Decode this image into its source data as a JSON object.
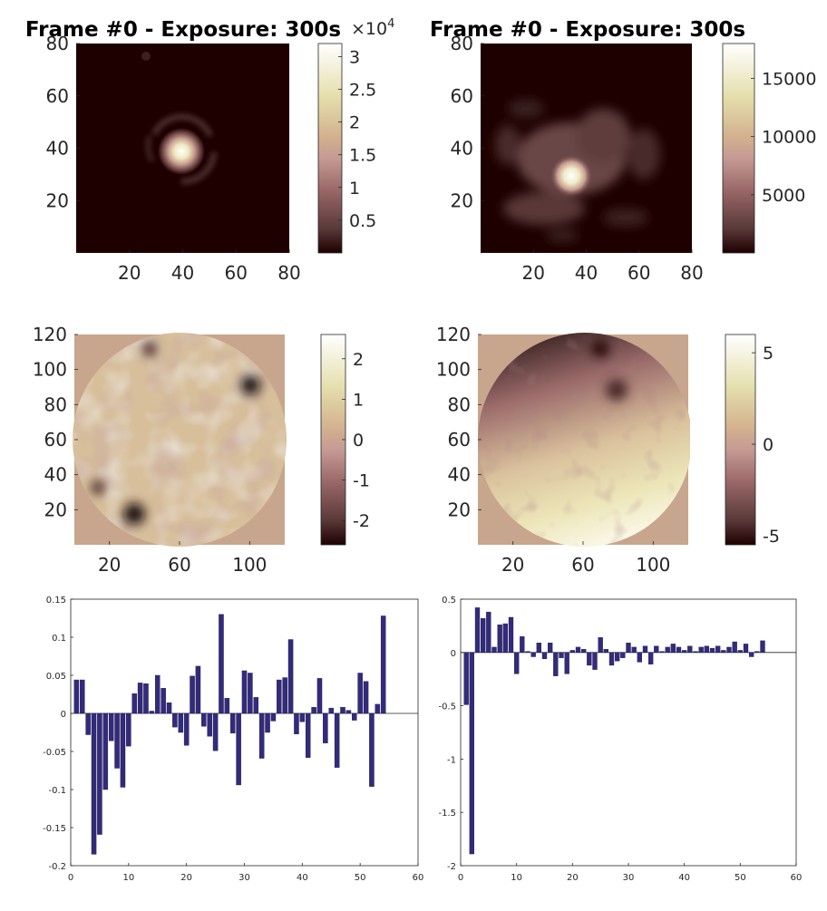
{
  "chart_data": [
    {
      "type": "heatmap",
      "title": "Frame #0 - Exposure: 300s",
      "xlim": [
        0,
        80
      ],
      "ylim": [
        0,
        80
      ],
      "xticks": [
        20,
        40,
        60,
        80
      ],
      "yticks": [
        20,
        40,
        60,
        80
      ],
      "colorbar": {
        "min": 0,
        "max": 32000,
        "ticks": [
          0.5,
          1,
          1.5,
          2,
          2.5,
          3
        ],
        "tick_labels": [
          "0.5",
          "1",
          "1.5",
          "2",
          "2.5",
          "3"
        ],
        "multiplier": "×10",
        "multiplier_exp": "4"
      },
      "features": [
        {
          "kind": "peak",
          "x": 40,
          "y": 39,
          "value": 32000
        }
      ]
    },
    {
      "type": "heatmap",
      "title": "Frame #0 - Exposure: 300s",
      "xlim": [
        0,
        80
      ],
      "ylim": [
        0,
        80
      ],
      "xticks": [
        20,
        40,
        60,
        80
      ],
      "yticks": [
        20,
        40,
        60,
        80
      ],
      "colorbar": {
        "min": 0,
        "max": 18000,
        "ticks": [
          5000,
          10000,
          15000
        ],
        "tick_labels": [
          "5000",
          "10000",
          "15000"
        ]
      },
      "features": [
        {
          "kind": "peak",
          "x": 35,
          "y": 29,
          "value": 18000
        }
      ]
    },
    {
      "type": "heatmap",
      "title": "",
      "xlim": [
        0,
        120
      ],
      "ylim": [
        0,
        120
      ],
      "xticks": [
        20,
        60,
        100
      ],
      "yticks": [
        20,
        40,
        60,
        80,
        100,
        120
      ],
      "colorbar": {
        "min": -2.6,
        "max": 2.6,
        "ticks": [
          -2,
          -1,
          0,
          1,
          2
        ],
        "tick_labels": [
          "-2",
          "-1",
          "0",
          "1",
          "2"
        ]
      }
    },
    {
      "type": "heatmap",
      "title": "",
      "xlim": [
        0,
        120
      ],
      "ylim": [
        0,
        120
      ],
      "xticks": [
        20,
        60,
        100
      ],
      "yticks": [
        20,
        40,
        60,
        80,
        100,
        120
      ],
      "colorbar": {
        "min": -5.5,
        "max": 6,
        "ticks": [
          -5,
          0,
          5
        ],
        "tick_labels": [
          "-5",
          "0",
          "5"
        ]
      }
    },
    {
      "type": "bar",
      "title": "",
      "xlim": [
        0,
        60
      ],
      "ylim": [
        -0.2,
        0.15
      ],
      "xticks": [
        0,
        10,
        20,
        30,
        40,
        50,
        60
      ],
      "yticks": [
        -0.2,
        -0.15,
        -0.1,
        -0.05,
        0,
        0.05,
        0.1,
        0.15
      ],
      "ytick_labels": [
        "-0.2",
        "-0.15",
        "-0.1",
        "-0.05",
        "0",
        "0.05",
        "0.1",
        "0.15"
      ],
      "x": [
        1,
        2,
        3,
        4,
        5,
        6,
        7,
        8,
        9,
        10,
        11,
        12,
        13,
        14,
        15,
        16,
        17,
        18,
        19,
        20,
        21,
        22,
        23,
        24,
        25,
        26,
        27,
        28,
        29,
        30,
        31,
        32,
        33,
        34,
        35,
        36,
        37,
        38,
        39,
        40,
        41,
        42,
        43,
        44,
        45,
        46,
        47,
        48,
        49,
        50,
        51,
        52,
        53,
        54
      ],
      "values": [
        0.044,
        0.044,
        -0.028,
        -0.185,
        -0.159,
        -0.1,
        -0.036,
        -0.072,
        -0.097,
        -0.043,
        0.026,
        0.04,
        0.039,
        0.003,
        0.05,
        0.033,
        0.014,
        -0.018,
        -0.025,
        -0.042,
        0.049,
        0.062,
        -0.017,
        -0.03,
        -0.049,
        0.13,
        0.02,
        -0.026,
        -0.094,
        0.056,
        0.053,
        0.021,
        -0.059,
        -0.025,
        -0.01,
        0.044,
        0.047,
        0.097,
        -0.027,
        -0.011,
        -0.058,
        0.008,
        0.046,
        -0.039,
        0.007,
        -0.071,
        0.008,
        0.004,
        -0.009,
        0.053,
        0.042,
        -0.096,
        0.012,
        0.128
      ]
    },
    {
      "type": "bar",
      "title": "",
      "xlim": [
        0,
        60
      ],
      "ylim": [
        -2,
        0.5
      ],
      "xticks": [
        0,
        10,
        20,
        30,
        40,
        50,
        60
      ],
      "yticks": [
        -2,
        -1.5,
        -1,
        -0.5,
        0,
        0.5
      ],
      "ytick_labels": [
        "-2",
        "-1.5",
        "-1",
        "-0.5",
        "0",
        "0.5"
      ],
      "x": [
        1,
        2,
        3,
        4,
        5,
        6,
        7,
        8,
        9,
        10,
        11,
        12,
        13,
        14,
        15,
        16,
        17,
        18,
        19,
        20,
        21,
        22,
        23,
        24,
        25,
        26,
        27,
        28,
        29,
        30,
        31,
        32,
        33,
        34,
        35,
        36,
        37,
        38,
        39,
        40,
        41,
        42,
        43,
        44,
        45,
        46,
        47,
        48,
        49,
        50,
        51,
        52,
        53,
        54
      ],
      "values": [
        -0.49,
        -1.89,
        0.42,
        0.32,
        0.38,
        0.05,
        0.26,
        0.27,
        0.33,
        -0.2,
        0.15,
        0.01,
        -0.04,
        0.09,
        -0.06,
        0.09,
        -0.22,
        -0.05,
        -0.2,
        0.02,
        0.05,
        0.03,
        -0.12,
        -0.16,
        0.14,
        0.03,
        -0.12,
        -0.08,
        -0.05,
        0.09,
        0.05,
        -0.09,
        0.06,
        -0.11,
        0.06,
        0.01,
        0.05,
        0.08,
        0.05,
        0.02,
        0.06,
        0.01,
        0.05,
        0.06,
        0.04,
        0.06,
        0.02,
        0.05,
        0.1,
        0.02,
        0.08,
        -0.04,
        0.01,
        0.11
      ]
    }
  ]
}
